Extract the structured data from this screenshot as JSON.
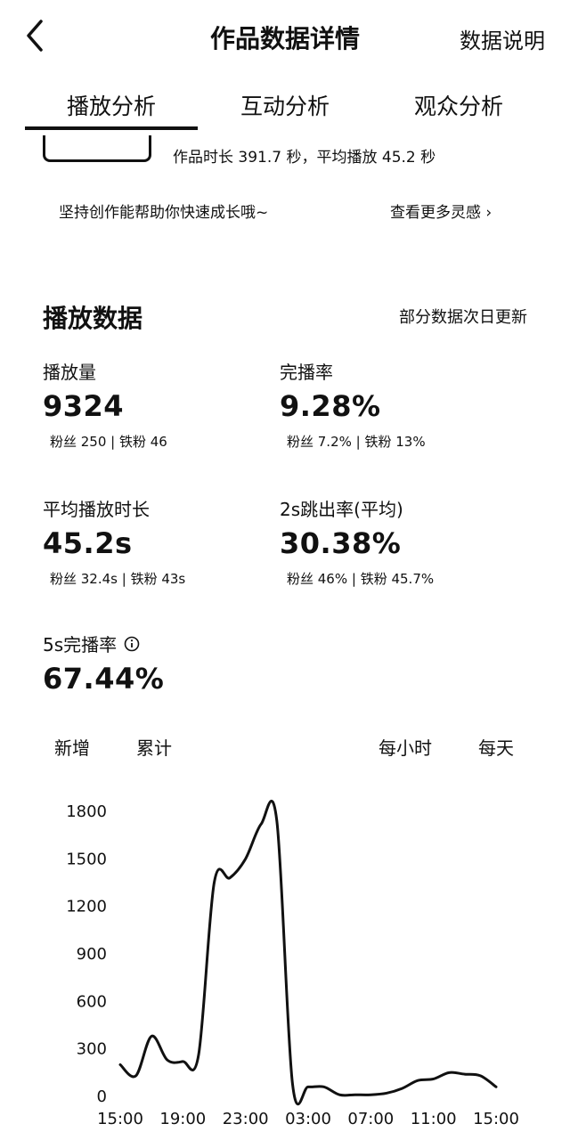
{
  "header": {
    "title": "作品数据详情",
    "help_label": "数据说明"
  },
  "tabs": [
    {
      "label": "播放分析",
      "active": true
    },
    {
      "label": "互动分析",
      "active": false
    },
    {
      "label": "观众分析",
      "active": false
    }
  ],
  "work_info": {
    "duration_text": "作品时长 391.7 秒，平均播放 45.2 秒"
  },
  "tip": {
    "text": "坚持创作能帮助你快速成长哦~",
    "more_label": "查看更多灵感 ›"
  },
  "play_data": {
    "title": "播放数据",
    "note": "部分数据次日更新",
    "metrics": [
      {
        "label": "播放量",
        "value": "9324",
        "sub": "粉丝 250 | 铁粉 46"
      },
      {
        "label": "完播率",
        "value": "9.28%",
        "sub": "粉丝 7.2% | 铁粉 13%"
      },
      {
        "label": "平均播放时长",
        "value": "45.2s",
        "sub": "粉丝 32.4s | 铁粉 43s"
      },
      {
        "label": "2s跳出率(平均)",
        "value": "30.38%",
        "sub": "粉丝 46% | 铁粉 45.7%"
      },
      {
        "label": "5s完播率",
        "value": "67.44%",
        "sub": ""
      }
    ]
  },
  "chart_toggles": {
    "mode_new": "新增",
    "mode_cumulative": "累计",
    "period_hourly": "每小时",
    "period_daily": "每天"
  },
  "colors": {
    "line": "#111111",
    "accent": "#111111"
  },
  "icons": {
    "back": "chevron-left-icon",
    "info": "info-circle-icon",
    "more": "chevron-right-icon"
  },
  "chart_data": {
    "type": "line",
    "x_tick_labels": [
      "15:00",
      "19:00",
      "23:00",
      "03:00",
      "07:00",
      "11:00",
      "15:00"
    ],
    "y_ticks": [
      0,
      300,
      600,
      900,
      1200,
      1500,
      1800
    ],
    "ylim": [
      0,
      1800
    ],
    "x": [
      0,
      1,
      2,
      3,
      4,
      5,
      6,
      7,
      8,
      9,
      10,
      11,
      12,
      13,
      14,
      15,
      16,
      17,
      18,
      19,
      20,
      21,
      22,
      23,
      24
    ],
    "values": [
      200,
      130,
      380,
      230,
      220,
      260,
      1350,
      1380,
      1500,
      1720,
      1740,
      80,
      60,
      60,
      10,
      10,
      10,
      20,
      50,
      100,
      110,
      150,
      140,
      130,
      60
    ],
    "grid": false,
    "legend": "none"
  }
}
